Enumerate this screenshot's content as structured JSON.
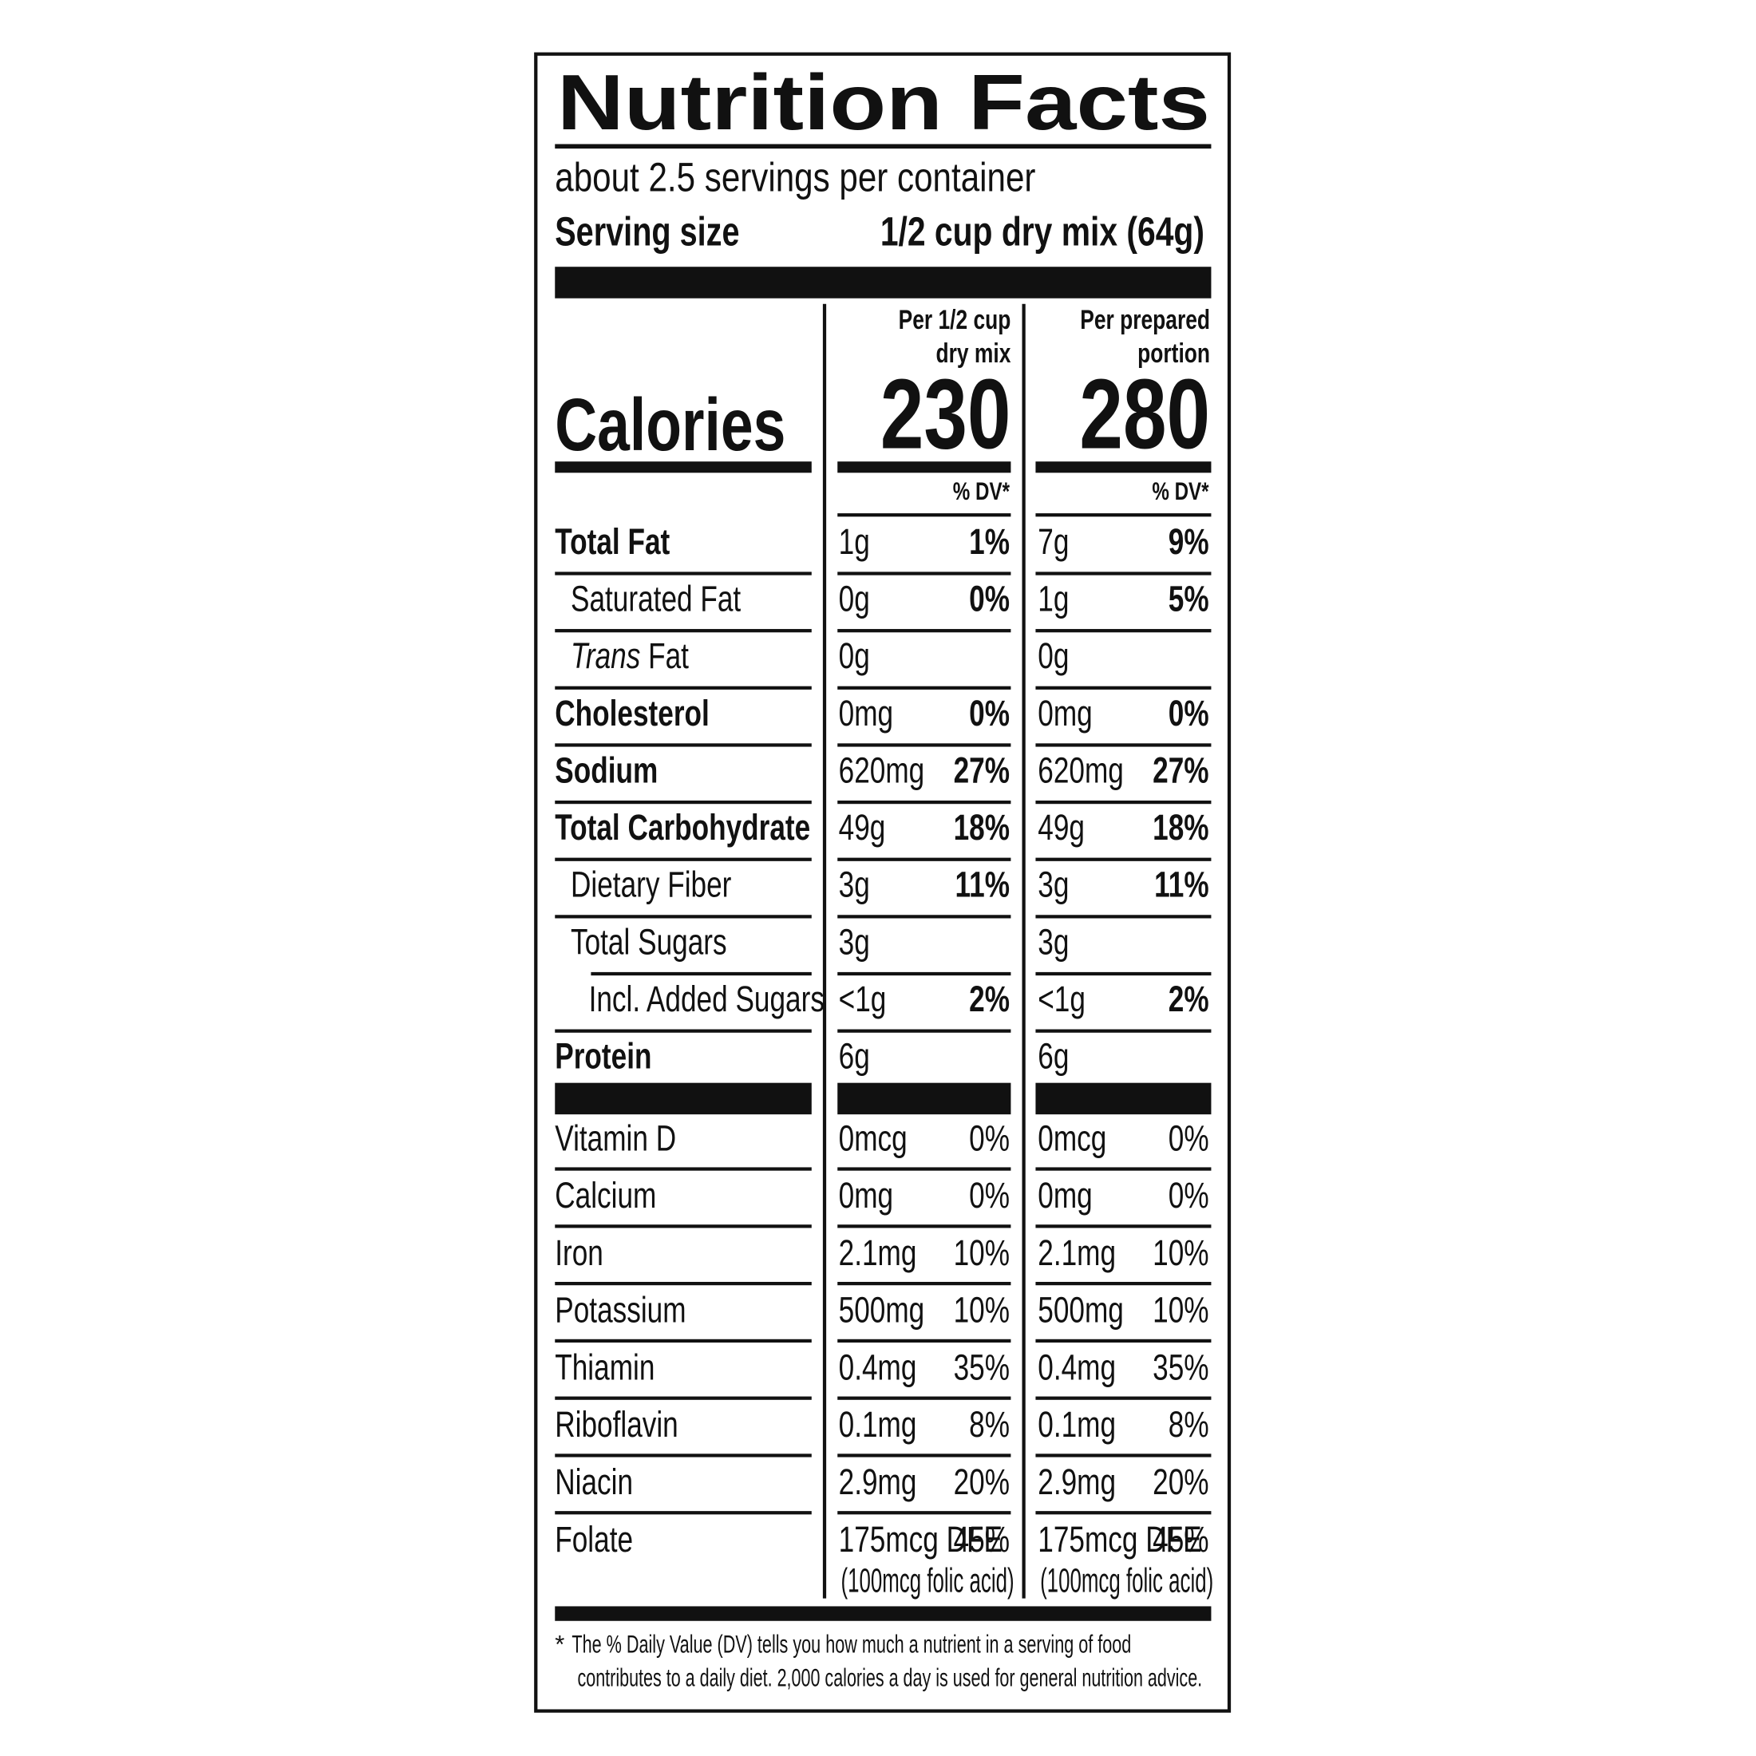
{
  "title": "Nutrition Facts",
  "servings": "about 2.5 servings per container",
  "serving_size": {
    "label": "Serving size",
    "value": "1/2 cup dry mix (64g)"
  },
  "calories_label": "Calories",
  "columns": [
    {
      "header": [
        "Per 1/2 cup",
        "dry mix"
      ],
      "calories": "230",
      "dv_header": "% DV*"
    },
    {
      "header": [
        "Per prepared",
        "portion"
      ],
      "calories": "280",
      "dv_header": "% DV*"
    }
  ],
  "nutrients": [
    {
      "name": "Total Fat",
      "bold": true,
      "indent": 0,
      "values": [
        {
          "amount": "1g",
          "dv": "1%"
        },
        {
          "amount": "7g",
          "dv": "9%"
        }
      ]
    },
    {
      "name": "Saturated Fat",
      "bold": false,
      "indent": 1,
      "values": [
        {
          "amount": "0g",
          "dv": "0%"
        },
        {
          "amount": "1g",
          "dv": "5%"
        }
      ]
    },
    {
      "name_parts": [
        {
          "text": "Trans",
          "italic": true
        },
        {
          "text": " Fat",
          "italic": false
        }
      ],
      "bold": false,
      "indent": 1,
      "values": [
        {
          "amount": "0g"
        },
        {
          "amount": "0g"
        }
      ]
    },
    {
      "name": "Cholesterol",
      "bold": true,
      "indent": 0,
      "values": [
        {
          "amount": "0mg",
          "dv": "0%"
        },
        {
          "amount": "0mg",
          "dv": "0%"
        }
      ]
    },
    {
      "name": "Sodium",
      "bold": true,
      "indent": 0,
      "values": [
        {
          "amount": "620mg",
          "dv": "27%"
        },
        {
          "amount": "620mg",
          "dv": "27%"
        }
      ]
    },
    {
      "name": "Total Carbohydrate",
      "bold": true,
      "indent": 0,
      "values": [
        {
          "amount": "49g",
          "dv": "18%"
        },
        {
          "amount": "49g",
          "dv": "18%"
        }
      ]
    },
    {
      "name": "Dietary Fiber",
      "bold": false,
      "indent": 1,
      "values": [
        {
          "amount": "3g",
          "dv": "11%"
        },
        {
          "amount": "3g",
          "dv": "11%"
        }
      ]
    },
    {
      "name": "Total Sugars",
      "bold": false,
      "indent": 1,
      "values": [
        {
          "amount": "3g"
        },
        {
          "amount": "3g"
        }
      ]
    },
    {
      "name": "Incl. Added Sugars",
      "bold": false,
      "indent": 2,
      "values": [
        {
          "amount": "<1g",
          "dv": "2%"
        },
        {
          "amount": "<1g",
          "dv": "2%"
        }
      ]
    },
    {
      "name": "Protein",
      "bold": true,
      "indent": 0,
      "values": [
        {
          "amount": "6g"
        },
        {
          "amount": "6g"
        }
      ]
    }
  ],
  "vitamins": [
    {
      "name": "Vitamin D",
      "values": [
        {
          "amount": "0mcg",
          "dv": "0%"
        },
        {
          "amount": "0mcg",
          "dv": "0%"
        }
      ]
    },
    {
      "name": "Calcium",
      "values": [
        {
          "amount": "0mg",
          "dv": "0%"
        },
        {
          "amount": "0mg",
          "dv": "0%"
        }
      ]
    },
    {
      "name": "Iron",
      "values": [
        {
          "amount": "2.1mg",
          "dv": "10%"
        },
        {
          "amount": "2.1mg",
          "dv": "10%"
        }
      ]
    },
    {
      "name": "Potassium",
      "values": [
        {
          "amount": "500mg",
          "dv": "10%"
        },
        {
          "amount": "500mg",
          "dv": "10%"
        }
      ]
    },
    {
      "name": "Thiamin",
      "values": [
        {
          "amount": "0.4mg",
          "dv": "35%"
        },
        {
          "amount": "0.4mg",
          "dv": "35%"
        }
      ]
    },
    {
      "name": "Riboflavin",
      "values": [
        {
          "amount": "0.1mg",
          "dv": "8%"
        },
        {
          "amount": "0.1mg",
          "dv": "8%"
        }
      ]
    },
    {
      "name": "Niacin",
      "values": [
        {
          "amount": "2.9mg",
          "dv": "20%"
        },
        {
          "amount": "2.9mg",
          "dv": "20%"
        }
      ]
    },
    {
      "name": "Folate",
      "values": [
        {
          "amount": "175mcg DFE",
          "dv": "45%",
          "note": "(100mcg folic acid)"
        },
        {
          "amount": "175mcg DFE",
          "dv": "45%",
          "note": "(100mcg folic acid)"
        }
      ]
    }
  ],
  "footnote": {
    "marker": "*",
    "lines": [
      "The % Daily Value (DV) tells you how much a nutrient in a serving of food",
      "contributes to a daily diet. 2,000 calories a day is used for general nutrition advice."
    ]
  }
}
